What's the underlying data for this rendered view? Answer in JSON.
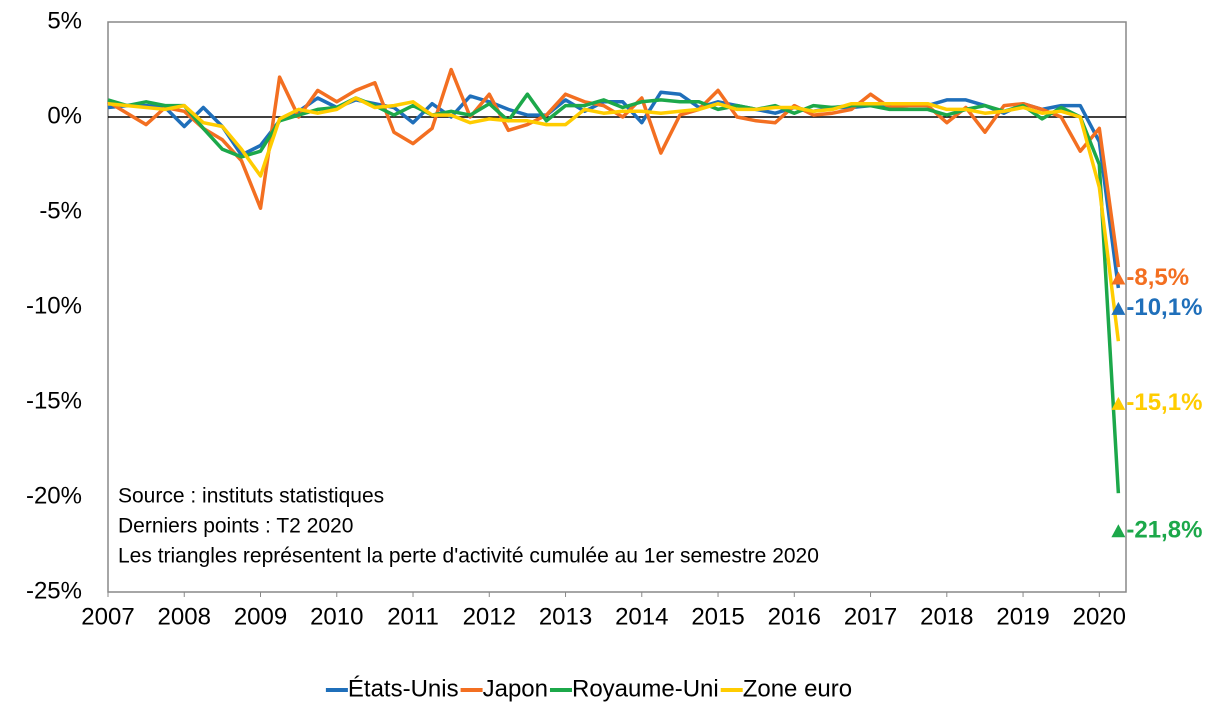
{
  "chart_data": {
    "type": "line",
    "x": [
      2007,
      2007.25,
      2007.5,
      2007.75,
      2008,
      2008.25,
      2008.5,
      2008.75,
      2009,
      2009.25,
      2009.5,
      2009.75,
      2010,
      2010.25,
      2010.5,
      2010.75,
      2011,
      2011.25,
      2011.5,
      2011.75,
      2012,
      2012.25,
      2012.5,
      2012.75,
      2013,
      2013.25,
      2013.5,
      2013.75,
      2014,
      2014.25,
      2014.5,
      2014.75,
      2015,
      2015.25,
      2015.5,
      2015.75,
      2016,
      2016.25,
      2016.5,
      2016.75,
      2017,
      2017.25,
      2017.5,
      2017.75,
      2018,
      2018.25,
      2018.5,
      2018.75,
      2019,
      2019.25,
      2019.5,
      2019.75,
      2020,
      2020.25
    ],
    "series": [
      {
        "name": "États-Unis",
        "color": "#1f6fba",
        "values": [
          0.5,
          0.6,
          0.6,
          0.5,
          -0.5,
          0.5,
          -0.5,
          -2.0,
          -1.5,
          -0.2,
          0.3,
          1.0,
          0.5,
          0.9,
          0.7,
          0.5,
          -0.3,
          0.7,
          0.0,
          1.1,
          0.8,
          0.4,
          0.1,
          0.1,
          0.9,
          0.3,
          0.8,
          0.8,
          -0.3,
          1.3,
          1.2,
          0.5,
          0.8,
          0.6,
          0.4,
          0.2,
          0.5,
          0.3,
          0.5,
          0.5,
          0.6,
          0.6,
          0.7,
          0.6,
          0.9,
          0.9,
          0.6,
          0.2,
          0.7,
          0.4,
          0.6,
          0.6,
          -1.3,
          -9.0
        ],
        "triangle": {
          "x": 2020.25,
          "value": -10.1,
          "label": "-10,1%"
        }
      },
      {
        "name": "Japon",
        "color": "#f36f21",
        "values": [
          0.8,
          0.2,
          -0.4,
          0.5,
          0.3,
          -0.6,
          -1.2,
          -2.3,
          -4.8,
          2.1,
          0.0,
          1.4,
          0.8,
          1.4,
          1.8,
          -0.8,
          -1.4,
          -0.6,
          2.5,
          0.0,
          1.2,
          -0.7,
          -0.4,
          0.1,
          1.2,
          0.8,
          0.6,
          0.0,
          1.0,
          -1.9,
          0.1,
          0.4,
          1.4,
          0.0,
          -0.2,
          -0.3,
          0.6,
          0.1,
          0.2,
          0.4,
          1.2,
          0.5,
          0.6,
          0.6,
          -0.3,
          0.5,
          -0.8,
          0.6,
          0.7,
          0.4,
          0.0,
          -1.8,
          -0.6,
          -7.9
        ],
        "triangle": {
          "x": 2020.25,
          "value": -8.5,
          "label": "-8,5%"
        }
      },
      {
        "name": "Royaume-Uni",
        "color": "#1ca84a",
        "values": [
          0.9,
          0.6,
          0.8,
          0.6,
          0.6,
          -0.6,
          -1.7,
          -2.1,
          -1.8,
          -0.2,
          0.1,
          0.4,
          0.5,
          1.0,
          0.6,
          0.1,
          0.6,
          0.1,
          0.3,
          0.1,
          0.7,
          -0.2,
          1.2,
          -0.2,
          0.6,
          0.6,
          0.9,
          0.5,
          0.8,
          0.9,
          0.8,
          0.8,
          0.4,
          0.6,
          0.4,
          0.6,
          0.2,
          0.6,
          0.5,
          0.6,
          0.6,
          0.4,
          0.4,
          0.4,
          0.1,
          0.4,
          0.6,
          0.3,
          0.6,
          -0.1,
          0.5,
          0.0,
          -2.5,
          -19.8
        ],
        "triangle": {
          "x": 2020.25,
          "value": -21.8,
          "label": "-21,8%"
        }
      },
      {
        "name": "Zone euro",
        "color": "#ffcc00",
        "values": [
          0.7,
          0.6,
          0.5,
          0.4,
          0.6,
          -0.3,
          -0.5,
          -1.7,
          -3.1,
          -0.1,
          0.4,
          0.2,
          0.4,
          1.0,
          0.5,
          0.6,
          0.8,
          0.1,
          0.1,
          -0.3,
          -0.1,
          -0.2,
          -0.2,
          -0.4,
          -0.4,
          0.4,
          0.2,
          0.3,
          0.3,
          0.2,
          0.3,
          0.4,
          0.7,
          0.4,
          0.4,
          0.5,
          0.5,
          0.3,
          0.4,
          0.7,
          0.7,
          0.7,
          0.7,
          0.7,
          0.4,
          0.4,
          0.2,
          0.3,
          0.5,
          0.2,
          0.3,
          0.0,
          -3.7,
          -11.8
        ],
        "triangle": {
          "x": 2020.25,
          "value": -15.1,
          "label": "-15,1%"
        }
      }
    ],
    "xlim": [
      2007,
      2020.35
    ],
    "xticks": [
      2007,
      2008,
      2009,
      2010,
      2011,
      2012,
      2013,
      2014,
      2015,
      2016,
      2017,
      2018,
      2019,
      2020
    ],
    "ylim": [
      -25,
      5
    ],
    "yticks": [
      {
        "value": 5,
        "label": "5%"
      },
      {
        "value": 0,
        "label": "0%"
      },
      {
        "value": -5,
        "label": "-5%"
      },
      {
        "value": -10,
        "label": "-10%"
      },
      {
        "value": -15,
        "label": "-15%"
      },
      {
        "value": -20,
        "label": "-20%"
      },
      {
        "value": -25,
        "label": "-25%"
      }
    ],
    "annotations": [
      "Source : instituts statistiques",
      "Derniers points : T2 2020",
      "Les triangles représentent la perte d'activité cumulée au 1er semestre 2020"
    ],
    "legend": "bottom"
  }
}
